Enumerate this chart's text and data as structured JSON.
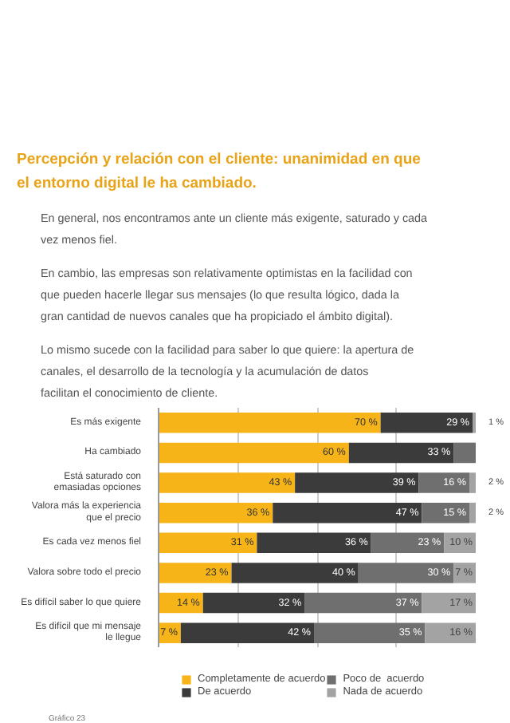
{
  "chart_data": {
    "type": "bar",
    "orientation": "horizontal",
    "stacked": true,
    "title": "Percepción y relación con el cliente: unanimidad en que el entorno digital le ha cambiado.",
    "annotations": [
      "En general, nos encontramos ante un cliente más exigente, saturado y  cada vez menos fiel.",
      "En cambio, las empresas son relativamente optimistas en la facilidad con que pueden hacerle llegar sus mensajes (lo que resulta lógico, dada la gran cantidad de nuevos canales que ha propiciado el ámbito digital).",
      "Lo mismo sucede con la facilidad para saber lo que quiere: la apertura de canales, el desarrollo de la tecnología y la acumulación de datos facilitan el conocimiento de cliente.",
      "Gráfico 23"
    ],
    "categories": [
      "Es más exigente",
      "Ha cambiado",
      "Está saturado con\nemasiadas opciones",
      "Valora más la experiencia\nque el precio",
      "Es cada vez menos fiel",
      "Valora sobre todo el precio",
      "Es difícil saber lo que quiere",
      "Es difícil que mi mensaje\nle llegue"
    ],
    "xlim": [
      0,
      100
    ],
    "xticks": [
      {
        "value": 0,
        "label": null
      },
      {
        "value": 25,
        "label": null
      },
      {
        "value": 50,
        "label": null
      },
      {
        "value": 75,
        "label": null
      },
      {
        "value": 100,
        "label": null
      }
    ],
    "grid": "x",
    "legend": "bottom",
    "series": [
      {
        "name": "Completamente de acuerdo",
        "color": "#f6b418",
        "values": [
          70,
          60,
          43,
          36,
          31,
          23,
          14,
          7
        ],
        "value_labels": [
          "70 %",
          "60 %",
          "43 %",
          "36 %",
          "31 %",
          "23 %",
          "14 %",
          "7 %"
        ]
      },
      {
        "name": "De acuerdo",
        "color": "#3b3b3b",
        "values": [
          29,
          33,
          39,
          47,
          36,
          40,
          32,
          42
        ],
        "value_labels": [
          "29 %",
          "33 %",
          "39 %",
          "47 %",
          "36 %",
          "40 %",
          "32 %",
          "42 %"
        ]
      },
      {
        "name": "Poco de  acuerdo",
        "color": "#6f6f6f",
        "values": [
          0,
          7,
          16,
          15,
          23,
          30,
          37,
          35
        ],
        "value_labels": [
          null,
          null,
          "16 %",
          "15 %",
          "23 %",
          "30 %",
          "37 %",
          "35 %"
        ]
      },
      {
        "name": "Nada de acuerdo",
        "color": "#a3a3a3",
        "values": [
          1,
          0,
          2,
          2,
          10,
          7,
          17,
          16
        ],
        "value_labels": [
          "1 %",
          null,
          "2 %",
          "2 %",
          "10 %",
          "7 %",
          "17 %",
          "16 %"
        ]
      }
    ]
  }
}
